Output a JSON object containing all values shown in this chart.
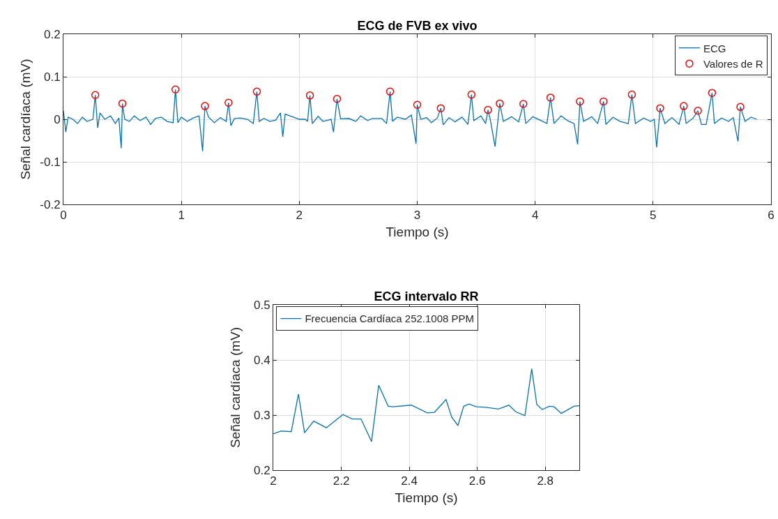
{
  "chart_data": [
    {
      "type": "line",
      "title": "ECG de FVB ex vivo",
      "xlabel": "Tiempo (s)",
      "ylabel": "Señal cardíaca (mV)",
      "xlim": [
        0,
        6
      ],
      "xticks": [
        0,
        1,
        2,
        3,
        4,
        5,
        6
      ],
      "ylim": [
        -0.2,
        0.2
      ],
      "yticks": [
        -0.2,
        -0.1,
        0,
        0.1,
        0.2
      ],
      "grid": true,
      "legend": "top right",
      "series": [
        {
          "name": "ECG",
          "color": "#0072bd",
          "marker": "none",
          "line_style": "solid",
          "x": [
            0,
            0.02,
            0.04,
            0.08,
            0.12,
            0.16,
            0.2,
            0.25,
            0.27,
            0.29,
            0.31,
            0.35,
            0.4,
            0.44,
            0.47,
            0.49,
            0.5,
            0.52,
            0.56,
            0.6,
            0.65,
            0.7,
            0.74,
            0.78,
            0.83,
            0.88,
            0.93,
            0.95,
            0.97,
            1.0,
            1.05,
            1.1,
            1.15,
            1.18,
            1.2,
            1.23,
            1.28,
            1.33,
            1.38,
            1.4,
            1.42,
            1.45,
            1.5,
            1.56,
            1.61,
            1.64,
            1.66,
            1.7,
            1.75,
            1.8,
            1.84,
            1.86,
            1.88,
            1.95,
            2.0,
            2.05,
            2.07,
            2.09,
            2.11,
            2.16,
            2.2,
            2.27,
            2.29,
            2.32,
            2.35,
            2.42,
            2.48,
            2.52,
            2.58,
            2.62,
            2.7,
            2.74,
            2.77,
            2.79,
            2.83,
            2.9,
            2.95,
            2.99,
            3.0,
            3.03,
            3.08,
            3.12,
            3.17,
            3.2,
            3.22,
            3.27,
            3.32,
            3.38,
            3.43,
            3.46,
            3.48,
            3.54,
            3.58,
            3.6,
            3.62,
            3.66,
            3.7,
            3.73,
            3.8,
            3.86,
            3.9,
            3.92,
            3.98,
            4.05,
            4.1,
            4.13,
            4.16,
            4.22,
            4.28,
            4.33,
            4.36,
            4.38,
            4.41,
            4.48,
            4.53,
            4.58,
            4.6,
            4.66,
            4.72,
            4.79,
            4.82,
            4.85,
            4.92,
            4.98,
            5.01,
            5.03,
            5.06,
            5.1,
            5.16,
            5.22,
            5.26,
            5.28,
            5.34,
            5.38,
            5.41,
            5.45,
            5.5,
            5.52,
            5.58,
            5.64,
            5.68,
            5.72,
            5.74,
            5.78,
            5.83,
            5.88
          ],
          "values": [
            0.02,
            -0.03,
            0.005,
            0,
            -0.01,
            0.005,
            -0.005,
            0,
            0.057,
            -0.02,
            0.015,
            0,
            0.008,
            -0.01,
            0.003,
            -0.068,
            0.037,
            0,
            -0.005,
            0.008,
            -0.003,
            0.005,
            -0.012,
            0.002,
            0.005,
            -0.005,
            -0.008,
            0.07,
            -0.008,
            0.005,
            -0.005,
            0.003,
            0.008,
            -0.075,
            0.031,
            0.005,
            -0.008,
            0.004,
            -0.005,
            0.039,
            -0.015,
            0.002,
            0.003,
            0,
            -0.01,
            0.065,
            -0.005,
            0.002,
            -0.005,
            -0.002,
            0.015,
            -0.041,
            0.012,
            0.005,
            0,
            0,
            -0.005,
            0.056,
            -0.01,
            0.007,
            -0.005,
            0,
            -0.03,
            0.048,
            0.001,
            0.002,
            -0.005,
            0.008,
            -0.003,
            0.002,
            0.002,
            -0.01,
            0.065,
            -0.005,
            0.005,
            0,
            0.01,
            -0.057,
            0.034,
            0,
            0.004,
            -0.008,
            0.003,
            0.026,
            -0.013,
            0.004,
            -0.006,
            0.005,
            -0.012,
            0.058,
            -0.003,
            0.008,
            -0.01,
            0.022,
            -0.002,
            -0.064,
            0.037,
            -0.005,
            0.006,
            -0.006,
            0.036,
            -0.01,
            0.006,
            -0.003,
            -0.01,
            0.051,
            -0.01,
            0.008,
            -0.004,
            -0.01,
            -0.059,
            0.042,
            -0.005,
            0.006,
            -0.01,
            0.042,
            -0.012,
            0.005,
            -0.005,
            -0.01,
            0.058,
            -0.01,
            0.003,
            -0.005,
            0,
            -0.066,
            0.026,
            -0.01,
            0.004,
            -0.012,
            0.031,
            -0.01,
            0.003,
            0.02,
            -0.012,
            -0.012,
            0.062,
            -0.01,
            0.003,
            -0.005,
            0.004,
            -0.052,
            0.029,
            -0.005,
            0.005,
            0
          ]
        },
        {
          "name": "Valores de R",
          "type": "scatter",
          "color": "#ff0000",
          "marker": "circle",
          "x": [
            0.27,
            0.5,
            0.95,
            1.2,
            1.4,
            1.64,
            2.09,
            2.32,
            2.77,
            3.0,
            3.2,
            3.46,
            3.6,
            3.7,
            3.9,
            4.13,
            4.38,
            4.58,
            4.82,
            5.06,
            5.26,
            5.38,
            5.5,
            5.74
          ],
          "values": [
            0.057,
            0.037,
            0.07,
            0.031,
            0.039,
            0.065,
            0.056,
            0.048,
            0.065,
            0.034,
            0.026,
            0.058,
            0.022,
            0.037,
            0.036,
            0.051,
            0.042,
            0.042,
            0.058,
            0.026,
            0.031,
            0.02,
            0.062,
            0.029
          ]
        }
      ]
    },
    {
      "type": "line",
      "title": "ECG intervalo RR",
      "xlabel": "Tiempo (s)",
      "ylabel": "Señal cardíaca (mV)",
      "xlim": [
        2,
        2.9
      ],
      "xticks": [
        2,
        2.2,
        2.4,
        2.6,
        2.8
      ],
      "ylim": [
        0.2,
        0.5
      ],
      "yticks": [
        0.2,
        0.3,
        0.4,
        0.5
      ],
      "grid": true,
      "legend": "top left",
      "line_style": "solid",
      "series": [
        {
          "name": "Frecuencia Cardíaca 252.1008 PPM",
          "color": "#0072bd",
          "x": [
            2.0,
            2.023,
            2.053,
            2.074,
            2.092,
            2.119,
            2.156,
            2.205,
            2.232,
            2.258,
            2.289,
            2.31,
            2.338,
            2.351,
            2.406,
            2.453,
            2.474,
            2.508,
            2.525,
            2.543,
            2.56,
            2.576,
            2.597,
            2.625,
            2.662,
            2.693,
            2.713,
            2.74,
            2.76,
            2.775,
            2.791,
            2.812,
            2.826,
            2.847,
            2.884,
            2.9
          ],
          "values": [
            0.266,
            0.271,
            0.27,
            0.338,
            0.268,
            0.289,
            0.277,
            0.301,
            0.293,
            0.293,
            0.252,
            0.354,
            0.316,
            0.315,
            0.318,
            0.304,
            0.305,
            0.328,
            0.296,
            0.281,
            0.316,
            0.32,
            0.315,
            0.314,
            0.311,
            0.318,
            0.306,
            0.299,
            0.384,
            0.319,
            0.31,
            0.316,
            0.315,
            0.303,
            0.316,
            0.317
          ]
        }
      ]
    }
  ]
}
